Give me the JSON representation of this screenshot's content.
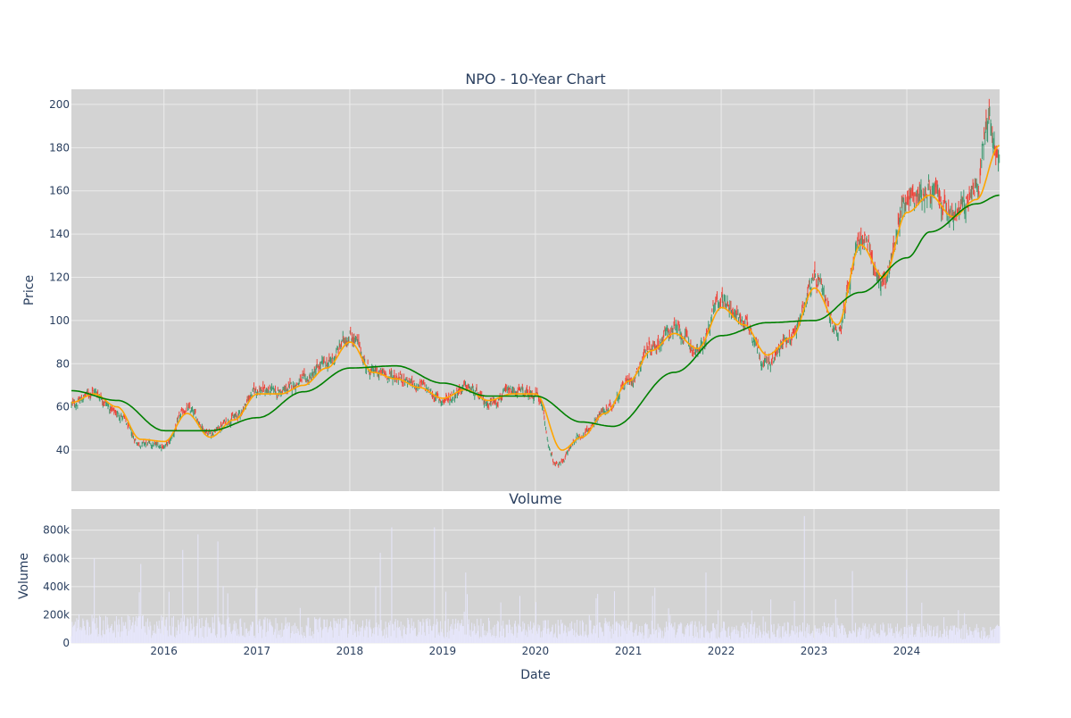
{
  "colors": {
    "plot_bg": "#d3d3d3",
    "grid": "#ebebeb",
    "candle_up": "#3d9970",
    "candle_down": "#ef4136",
    "ma_short": "#ffa500",
    "ma_long": "#008000",
    "volume_bar": "#e6e6fa",
    "text": "#2a3f5f"
  },
  "chart_data": [
    {
      "type": "candlestick",
      "title": "NPO - 10-Year Chart",
      "ylabel": "Price",
      "xlabel": "",
      "xlim": [
        "2015-01-02",
        "2024-12-31"
      ],
      "ylim": [
        21,
        207
      ],
      "x_ticks": [
        "2016",
        "2017",
        "2018",
        "2019",
        "2020",
        "2021",
        "2022",
        "2023",
        "2024"
      ],
      "y_ticks": [
        "40",
        "60",
        "80",
        "100",
        "120",
        "140",
        "160",
        "180",
        "200"
      ],
      "grid": true,
      "series": [
        {
          "name": "",
          "type": "close",
          "points": [
            [
              "2015-01-02",
              61
            ],
            [
              "2015-04-01",
              67
            ],
            [
              "2015-07-01",
              57
            ],
            [
              "2015-10-01",
              43
            ],
            [
              "2016-01-04",
              42
            ],
            [
              "2016-04-01",
              59
            ],
            [
              "2016-07-01",
              48
            ],
            [
              "2016-10-03",
              55
            ],
            [
              "2017-01-03",
              68
            ],
            [
              "2017-04-03",
              67
            ],
            [
              "2017-07-03",
              72
            ],
            [
              "2017-10-02",
              80
            ],
            [
              "2018-01-02",
              93
            ],
            [
              "2018-04-02",
              76
            ],
            [
              "2018-07-02",
              74
            ],
            [
              "2018-10-01",
              70
            ],
            [
              "2019-01-02",
              63
            ],
            [
              "2019-04-01",
              69
            ],
            [
              "2019-07-01",
              62
            ],
            [
              "2019-10-01",
              67
            ],
            [
              "2020-01-02",
              66
            ],
            [
              "2020-03-23",
              33
            ],
            [
              "2020-07-01",
              47
            ],
            [
              "2020-10-01",
              58
            ],
            [
              "2021-01-04",
              72
            ],
            [
              "2021-04-01",
              88
            ],
            [
              "2021-07-01",
              96
            ],
            [
              "2021-10-01",
              86
            ],
            [
              "2022-01-03",
              110
            ],
            [
              "2022-04-01",
              100
            ],
            [
              "2022-07-01",
              80
            ],
            [
              "2022-10-03",
              93
            ],
            [
              "2023-01-03",
              118
            ],
            [
              "2023-04-03",
              96
            ],
            [
              "2023-07-03",
              138
            ],
            [
              "2023-10-02",
              118
            ],
            [
              "2024-01-02",
              157
            ],
            [
              "2024-04-01",
              160
            ],
            [
              "2024-07-01",
              148
            ],
            [
              "2024-10-01",
              160
            ],
            [
              "2024-11-15",
              195
            ],
            [
              "2024-12-31",
              172
            ]
          ]
        },
        {
          "name": "",
          "type": "moving_average_short",
          "points": [
            [
              "2015-01-02",
              62
            ],
            [
              "2015-04-01",
              66
            ],
            [
              "2015-07-01",
              60
            ],
            [
              "2015-10-01",
              45
            ],
            [
              "2016-01-04",
              44
            ],
            [
              "2016-04-01",
              57
            ],
            [
              "2016-07-01",
              46
            ],
            [
              "2016-10-03",
              54
            ],
            [
              "2017-01-03",
              66
            ],
            [
              "2017-04-03",
              66
            ],
            [
              "2017-07-03",
              70
            ],
            [
              "2017-10-02",
              78
            ],
            [
              "2018-01-02",
              90
            ],
            [
              "2018-04-02",
              76
            ],
            [
              "2018-07-02",
              73
            ],
            [
              "2018-10-01",
              69
            ],
            [
              "2019-01-02",
              64
            ],
            [
              "2019-04-01",
              68
            ],
            [
              "2019-07-01",
              63
            ],
            [
              "2019-10-01",
              66
            ],
            [
              "2020-01-02",
              66
            ],
            [
              "2020-04-15",
              40
            ],
            [
              "2020-07-01",
              46
            ],
            [
              "2020-10-01",
              57
            ],
            [
              "2021-01-04",
              72
            ],
            [
              "2021-04-01",
              86
            ],
            [
              "2021-07-01",
              94
            ],
            [
              "2021-10-01",
              87
            ],
            [
              "2022-01-03",
              106
            ],
            [
              "2022-04-01",
              98
            ],
            [
              "2022-07-01",
              84
            ],
            [
              "2022-10-03",
              92
            ],
            [
              "2023-01-03",
              115
            ],
            [
              "2023-04-03",
              98
            ],
            [
              "2023-07-03",
              135
            ],
            [
              "2023-10-02",
              120
            ],
            [
              "2024-01-02",
              150
            ],
            [
              "2024-04-01",
              158
            ],
            [
              "2024-07-01",
              148
            ],
            [
              "2024-10-01",
              156
            ],
            [
              "2024-12-31",
              181
            ]
          ]
        },
        {
          "name": "",
          "type": "moving_average_long",
          "points": [
            [
              "2015-01-02",
              67.5
            ],
            [
              "2015-07-01",
              63
            ],
            [
              "2016-01-04",
              49
            ],
            [
              "2016-07-01",
              49
            ],
            [
              "2017-01-03",
              55
            ],
            [
              "2017-07-03",
              67
            ],
            [
              "2018-01-02",
              78
            ],
            [
              "2018-07-02",
              79
            ],
            [
              "2019-01-02",
              71
            ],
            [
              "2019-07-01",
              65
            ],
            [
              "2020-01-02",
              65
            ],
            [
              "2020-07-01",
              53
            ],
            [
              "2020-11-02",
              51
            ],
            [
              "2021-07-01",
              76
            ],
            [
              "2022-01-03",
              93
            ],
            [
              "2022-07-01",
              99
            ],
            [
              "2023-01-03",
              100
            ],
            [
              "2023-07-03",
              113
            ],
            [
              "2024-01-02",
              129
            ],
            [
              "2024-04-01",
              141
            ],
            [
              "2024-10-01",
              154
            ],
            [
              "2024-12-31",
              158
            ]
          ]
        }
      ]
    },
    {
      "type": "bar",
      "title": "Volume",
      "ylabel": "Volume",
      "xlabel": "Date",
      "xlim": [
        "2015-01-02",
        "2024-12-31"
      ],
      "ylim": [
        0,
        950000
      ],
      "x_ticks": [
        "2016",
        "2017",
        "2018",
        "2019",
        "2020",
        "2021",
        "2022",
        "2023",
        "2024"
      ],
      "y_ticks": [
        "0",
        "200k",
        "400k",
        "600k",
        "800k"
      ],
      "grid": true,
      "approximate_spikes": [
        [
          "2015-04-01",
          600000
        ],
        [
          "2015-10-01",
          560000
        ],
        [
          "2016-03-15",
          660000
        ],
        [
          "2016-05-15",
          770000
        ],
        [
          "2016-08-01",
          720000
        ],
        [
          "2018-05-01",
          640000
        ],
        [
          "2018-06-15",
          820000
        ],
        [
          "2018-12-01",
          820000
        ],
        [
          "2019-04-01",
          500000
        ],
        [
          "2021-11-01",
          500000
        ],
        [
          "2022-11-25",
          900000
        ],
        [
          "2023-06-01",
          510000
        ],
        [
          "2024-01-01",
          520000
        ]
      ]
    }
  ]
}
